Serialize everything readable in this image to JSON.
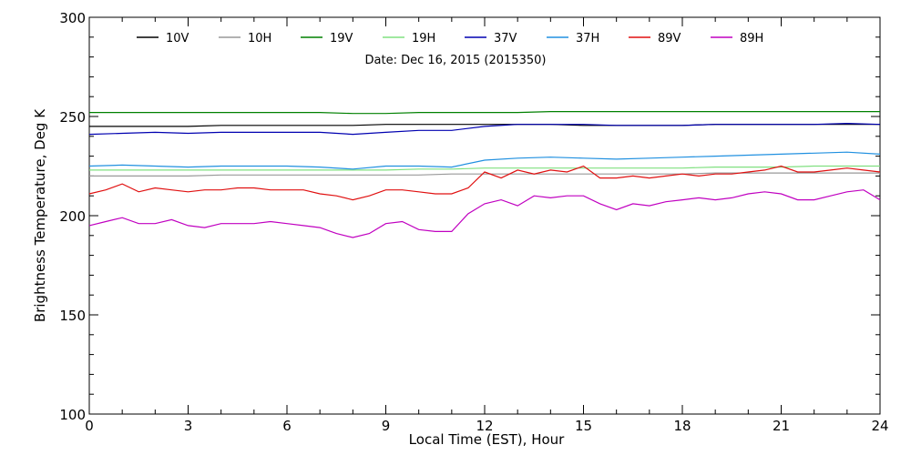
{
  "chart_data": {
    "type": "line",
    "title": "",
    "subtitle": "Date: Dec 16, 2015 (2015350)",
    "xlabel": "Local Time (EST), Hour",
    "ylabel": "Brightness Temperature, Deg K",
    "xlim": [
      0,
      24
    ],
    "ylim": [
      100,
      300
    ],
    "x_ticks": [
      0,
      3,
      6,
      9,
      12,
      15,
      18,
      21,
      24
    ],
    "y_ticks": [
      100,
      150,
      200,
      250,
      300
    ],
    "grid": false,
    "legend_position": "top",
    "series": [
      {
        "name": "10V",
        "color": "#000000",
        "x": [
          0,
          1,
          2,
          3,
          4,
          5,
          6,
          7,
          8,
          9,
          10,
          11,
          12,
          13,
          14,
          15,
          16,
          17,
          18,
          19,
          20,
          21,
          22,
          23,
          24
        ],
        "y": [
          245,
          245,
          245,
          245,
          245.5,
          245.5,
          245.5,
          245.5,
          245.5,
          246,
          246,
          246,
          246,
          246,
          246,
          245.5,
          245.5,
          245.5,
          245.5,
          246,
          246,
          246,
          246,
          246,
          246
        ]
      },
      {
        "name": "10H",
        "color": "#999999",
        "x": [
          0,
          1,
          2,
          3,
          4,
          5,
          6,
          7,
          8,
          9,
          10,
          11,
          12,
          13,
          14,
          15,
          16,
          17,
          18,
          19,
          20,
          21,
          22,
          23,
          24
        ],
        "y": [
          220,
          220,
          220,
          220,
          220.5,
          220.5,
          220.5,
          220.5,
          220.5,
          220.5,
          220.5,
          221,
          221,
          221,
          221,
          221,
          221,
          221,
          221,
          221.5,
          221.5,
          221.5,
          221.5,
          221.5,
          221.5
        ]
      },
      {
        "name": "19V",
        "color": "#008000",
        "x": [
          0,
          1,
          2,
          3,
          4,
          5,
          6,
          7,
          8,
          9,
          10,
          11,
          12,
          13,
          14,
          15,
          16,
          17,
          18,
          19,
          20,
          21,
          22,
          23,
          24
        ],
        "y": [
          252,
          252,
          252,
          252,
          252,
          252,
          252,
          252,
          251.5,
          251.5,
          252,
          252,
          252,
          252,
          252.5,
          252.5,
          252.5,
          252.5,
          252.5,
          252.5,
          252.5,
          252.5,
          252.5,
          252.5,
          252.5
        ]
      },
      {
        "name": "19H",
        "color": "#80e080",
        "x": [
          0,
          1,
          2,
          3,
          4,
          5,
          6,
          7,
          8,
          9,
          10,
          11,
          12,
          13,
          14,
          15,
          16,
          17,
          18,
          19,
          20,
          21,
          22,
          23,
          24
        ],
        "y": [
          223,
          223,
          223,
          223,
          223,
          223,
          223,
          223,
          223,
          223,
          223.5,
          223.5,
          224,
          224,
          224,
          224,
          224,
          224,
          224,
          224.5,
          224.5,
          224.5,
          225,
          225,
          225
        ]
      },
      {
        "name": "37V",
        "color": "#0000b0",
        "x": [
          0,
          1,
          2,
          3,
          4,
          5,
          6,
          7,
          8,
          9,
          10,
          11,
          12,
          13,
          14,
          15,
          16,
          17,
          18,
          19,
          20,
          21,
          22,
          23,
          24
        ],
        "y": [
          241,
          241.5,
          242,
          241.5,
          242,
          242,
          242,
          242,
          241,
          242,
          243,
          243,
          245,
          246,
          246,
          246,
          245.5,
          245.5,
          245.5,
          246,
          246,
          246,
          246,
          246.5,
          246
        ]
      },
      {
        "name": "37H",
        "color": "#2090e0",
        "x": [
          0,
          1,
          2,
          3,
          4,
          5,
          6,
          7,
          8,
          9,
          10,
          11,
          12,
          13,
          14,
          15,
          16,
          17,
          18,
          19,
          20,
          21,
          22,
          23,
          24
        ],
        "y": [
          225,
          225.5,
          225,
          224.5,
          225,
          225,
          225,
          224.5,
          223.5,
          225,
          225,
          224.5,
          228,
          229,
          229.5,
          229,
          228.5,
          229,
          229.5,
          230,
          230.5,
          231,
          231.5,
          232,
          231
        ]
      },
      {
        "name": "89V",
        "color": "#e01010",
        "x": [
          0,
          0.5,
          1,
          1.5,
          2,
          2.5,
          3,
          3.5,
          4,
          4.5,
          5,
          5.5,
          6,
          6.5,
          7,
          7.5,
          8,
          8.5,
          9,
          9.5,
          10,
          10.5,
          11,
          11.5,
          12,
          12.5,
          13,
          13.5,
          14,
          14.5,
          15,
          15.5,
          16,
          16.5,
          17,
          17.5,
          18,
          18.5,
          19,
          19.5,
          20,
          20.5,
          21,
          21.5,
          22,
          22.5,
          23,
          23.5,
          24
        ],
        "y": [
          211,
          213,
          216,
          212,
          214,
          213,
          212,
          213,
          213,
          214,
          214,
          213,
          213,
          213,
          211,
          210,
          208,
          210,
          213,
          213,
          212,
          211,
          211,
          214,
          222,
          219,
          223,
          221,
          223,
          222,
          225,
          219,
          219,
          220,
          219,
          220,
          221,
          220,
          221,
          221,
          222,
          223,
          225,
          222,
          222,
          223,
          224,
          223,
          222
        ]
      },
      {
        "name": "89H",
        "color": "#c000c0",
        "x": [
          0,
          0.5,
          1,
          1.5,
          2,
          2.5,
          3,
          3.5,
          4,
          4.5,
          5,
          5.5,
          6,
          6.5,
          7,
          7.5,
          8,
          8.5,
          9,
          9.5,
          10,
          10.5,
          11,
          11.5,
          12,
          12.5,
          13,
          13.5,
          14,
          14.5,
          15,
          15.5,
          16,
          16.5,
          17,
          17.5,
          18,
          18.5,
          19,
          19.5,
          20,
          20.5,
          21,
          21.5,
          22,
          22.5,
          23,
          23.5,
          24
        ],
        "y": [
          195,
          197,
          199,
          196,
          196,
          198,
          195,
          194,
          196,
          196,
          196,
          197,
          196,
          195,
          194,
          191,
          189,
          191,
          196,
          197,
          193,
          192,
          192,
          201,
          206,
          208,
          205,
          210,
          209,
          210,
          210,
          206,
          203,
          206,
          205,
          207,
          208,
          209,
          208,
          209,
          211,
          212,
          211,
          208,
          208,
          210,
          212,
          213,
          208
        ]
      }
    ]
  }
}
